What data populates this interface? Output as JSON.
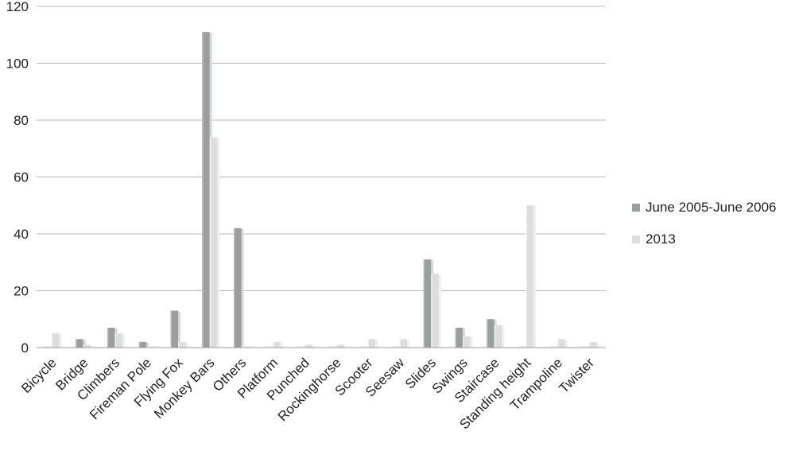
{
  "chart_data": {
    "type": "bar",
    "categories": [
      "Bicycle",
      "Bridge",
      "Climbers",
      "Fireman Pole",
      "Flying Fox",
      "Monkey Bars",
      "Others",
      "Platform",
      "Punched",
      "Rockinghorse",
      "Scooter",
      "Seesaw",
      "Slides",
      "Swings",
      "Staircase",
      "Standing height",
      "Trampoline",
      "Twister"
    ],
    "series": [
      {
        "name": "June 2005-June 2006",
        "color": "#9a9e9d",
        "values": [
          0,
          3,
          7,
          2,
          13,
          111,
          42,
          0,
          0,
          0,
          0,
          0,
          31,
          7,
          10,
          0,
          0,
          0
        ]
      },
      {
        "name": "2013",
        "color": "#dcdedd",
        "values": [
          5,
          1,
          5,
          0,
          2,
          74,
          0,
          2,
          1,
          1,
          3,
          3,
          26,
          4,
          8,
          50,
          3,
          2
        ]
      }
    ],
    "ylim": [
      0,
      120
    ],
    "yticks": [
      "0",
      "20",
      "40",
      "60",
      "80",
      "100",
      "120"
    ],
    "grid": true,
    "legend": "right"
  }
}
